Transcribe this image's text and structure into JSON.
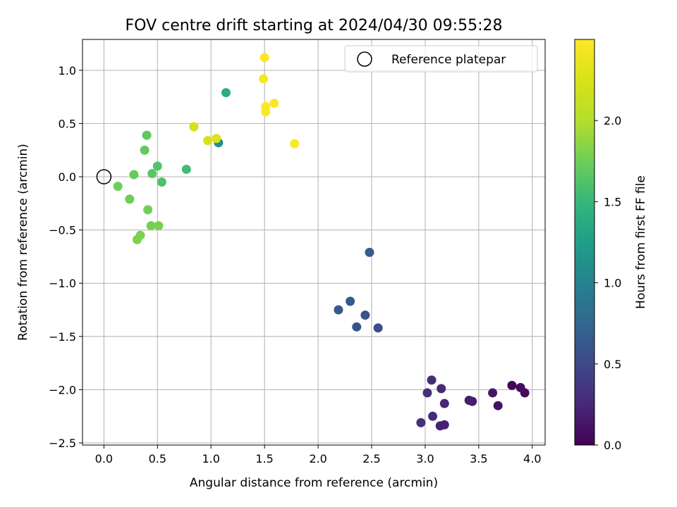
{
  "chart_data": {
    "type": "scatter",
    "title": "FOV centre drift starting at 2024/04/30 09:55:28",
    "xlabel": "Angular distance from reference (arcmin)",
    "ylabel": "Rotation from reference (arcmin)",
    "xlim": [
      -0.2,
      4.12
    ],
    "ylim": [
      -2.52,
      1.29
    ],
    "xticks": [
      0.0,
      0.5,
      1.0,
      1.5,
      2.0,
      2.5,
      3.0,
      3.5,
      4.0
    ],
    "xtick_labels": [
      "0.0",
      "0.5",
      "1.0",
      "1.5",
      "2.0",
      "2.5",
      "3.0",
      "3.5",
      "4.0"
    ],
    "yticks": [
      1.0,
      0.5,
      0.0,
      -0.5,
      -1.0,
      -1.5,
      -2.0,
      -2.5
    ],
    "ytick_labels": [
      "1.0",
      "0.5",
      "0.0",
      "−0.5",
      "−1.0",
      "−1.5",
      "−2.0",
      "−2.5"
    ],
    "grid": true,
    "legend": {
      "position": "top-right",
      "entries": [
        "Reference platepar"
      ]
    },
    "reference_point": {
      "x": 0.0,
      "y": 0.0
    },
    "colorbar": {
      "label": "Hours from first FF file",
      "min": 0.0,
      "max": 2.5,
      "colormap": "viridis",
      "ticks": [
        0.0,
        0.5,
        1.0,
        1.5,
        2.0
      ],
      "tick_labels": [
        "0.0",
        "0.5",
        "1.0",
        "1.5",
        "2.0"
      ]
    },
    "points": [
      {
        "x": 3.81,
        "y": -1.96,
        "c": 0.02
      },
      {
        "x": 3.93,
        "y": -2.03,
        "c": 0.05
      },
      {
        "x": 3.89,
        "y": -1.98,
        "c": 0.08
      },
      {
        "x": 3.68,
        "y": -2.15,
        "c": 0.1
      },
      {
        "x": 3.63,
        "y": -2.03,
        "c": 0.13
      },
      {
        "x": 3.44,
        "y": -2.11,
        "c": 0.17
      },
      {
        "x": 3.41,
        "y": -2.1,
        "c": 0.19
      },
      {
        "x": 3.18,
        "y": -2.33,
        "c": 0.2
      },
      {
        "x": 3.14,
        "y": -2.34,
        "c": 0.21
      },
      {
        "x": 3.18,
        "y": -2.13,
        "c": 0.23
      },
      {
        "x": 3.15,
        "y": -1.99,
        "c": 0.25
      },
      {
        "x": 3.07,
        "y": -2.25,
        "c": 0.27
      },
      {
        "x": 3.06,
        "y": -1.91,
        "c": 0.28
      },
      {
        "x": 3.02,
        "y": -2.03,
        "c": 0.3
      },
      {
        "x": 2.96,
        "y": -2.31,
        "c": 0.31
      },
      {
        "x": 2.56,
        "y": -1.42,
        "c": 0.55
      },
      {
        "x": 2.44,
        "y": -1.3,
        "c": 0.57
      },
      {
        "x": 2.36,
        "y": -1.41,
        "c": 0.59
      },
      {
        "x": 2.3,
        "y": -1.17,
        "c": 0.61
      },
      {
        "x": 2.19,
        "y": -1.25,
        "c": 0.63
      },
      {
        "x": 2.48,
        "y": -0.71,
        "c": 0.65
      },
      {
        "x": 1.07,
        "y": 0.32,
        "c": 1.1
      },
      {
        "x": 1.14,
        "y": 0.79,
        "c": 1.4
      },
      {
        "x": 0.77,
        "y": 0.07,
        "c": 1.55
      },
      {
        "x": 0.54,
        "y": -0.05,
        "c": 1.6
      },
      {
        "x": 0.5,
        "y": 0.1,
        "c": 1.63
      },
      {
        "x": 0.45,
        "y": 0.03,
        "c": 1.66
      },
      {
        "x": 0.4,
        "y": 0.39,
        "c": 1.68
      },
      {
        "x": 0.38,
        "y": 0.25,
        "c": 1.7
      },
      {
        "x": 0.28,
        "y": 0.02,
        "c": 1.72
      },
      {
        "x": 0.24,
        "y": -0.21,
        "c": 1.74
      },
      {
        "x": 0.13,
        "y": -0.09,
        "c": 1.75
      },
      {
        "x": 0.41,
        "y": -0.31,
        "c": 1.76
      },
      {
        "x": 0.44,
        "y": -0.46,
        "c": 1.77
      },
      {
        "x": 0.51,
        "y": -0.46,
        "c": 1.78
      },
      {
        "x": 0.34,
        "y": -0.55,
        "c": 1.79
      },
      {
        "x": 0.31,
        "y": -0.59,
        "c": 1.8
      },
      {
        "x": 0.84,
        "y": 0.47,
        "c": 2.2
      },
      {
        "x": 0.97,
        "y": 0.34,
        "c": 2.25
      },
      {
        "x": 1.05,
        "y": 0.36,
        "c": 2.28
      },
      {
        "x": 1.49,
        "y": 0.92,
        "c": 2.46
      },
      {
        "x": 1.5,
        "y": 1.12,
        "c": 2.48
      },
      {
        "x": 1.51,
        "y": 0.66,
        "c": 2.49
      },
      {
        "x": 1.51,
        "y": 0.61,
        "c": 2.49
      },
      {
        "x": 1.59,
        "y": 0.69,
        "c": 2.5
      },
      {
        "x": 1.78,
        "y": 0.31,
        "c": 2.5
      }
    ]
  },
  "colors": {
    "grid": "#b0b0b0",
    "axes": "#000000",
    "legend_border": "#cccccc"
  }
}
